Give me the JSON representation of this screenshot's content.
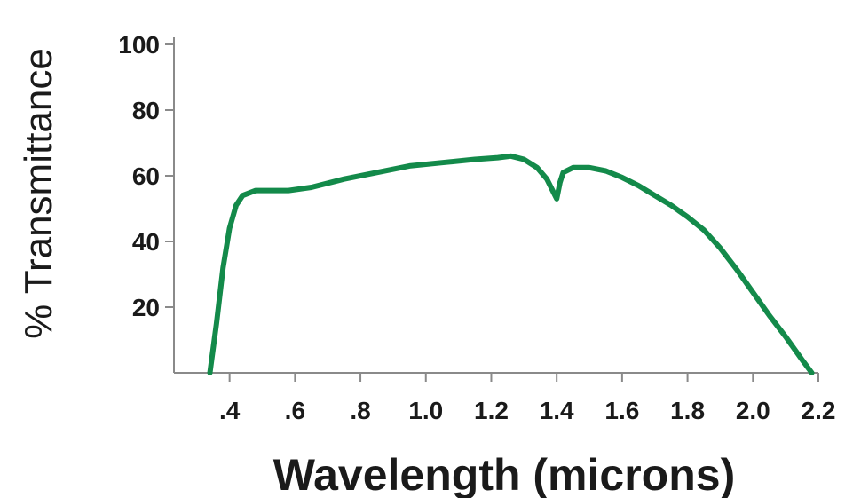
{
  "chart_data": {
    "type": "line",
    "xlabel": "Wavelength (microns)",
    "ylabel": "% Transmittance",
    "xlim": [
      0.23,
      2.2
    ],
    "ylim": [
      0,
      100
    ],
    "x_ticks": [
      0.4,
      0.6,
      0.8,
      1.0,
      1.2,
      1.4,
      1.6,
      1.8,
      2.0,
      2.2
    ],
    "x_tick_labels": [
      ".4",
      ".6",
      ".8",
      "1.0",
      "1.2",
      "1.4",
      "1.6",
      "1.8",
      "2.0",
      "2.2"
    ],
    "y_ticks": [
      20,
      40,
      60,
      80,
      100
    ],
    "y_tick_labels": [
      "20",
      "40",
      "60",
      "80",
      "100"
    ],
    "grid": false,
    "series": [
      {
        "color": "#138a4a",
        "x": [
          0.34,
          0.36,
          0.38,
          0.4,
          0.42,
          0.44,
          0.48,
          0.52,
          0.58,
          0.65,
          0.75,
          0.85,
          0.95,
          1.05,
          1.15,
          1.22,
          1.26,
          1.3,
          1.34,
          1.37,
          1.39,
          1.4,
          1.41,
          1.42,
          1.45,
          1.5,
          1.55,
          1.6,
          1.65,
          1.7,
          1.75,
          1.8,
          1.85,
          1.9,
          1.95,
          2.0,
          2.05,
          2.1,
          2.15,
          2.18
        ],
        "y": [
          0,
          15,
          32,
          44,
          51,
          54,
          55.5,
          55.5,
          55.5,
          56.5,
          59,
          61,
          63,
          64,
          65,
          65.5,
          66,
          65,
          62.5,
          59,
          55,
          53,
          58,
          61,
          62.5,
          62.5,
          61.5,
          59.5,
          57,
          54,
          51,
          47.5,
          43.5,
          38,
          31.5,
          24.5,
          17.5,
          11,
          4,
          0
        ]
      }
    ]
  }
}
